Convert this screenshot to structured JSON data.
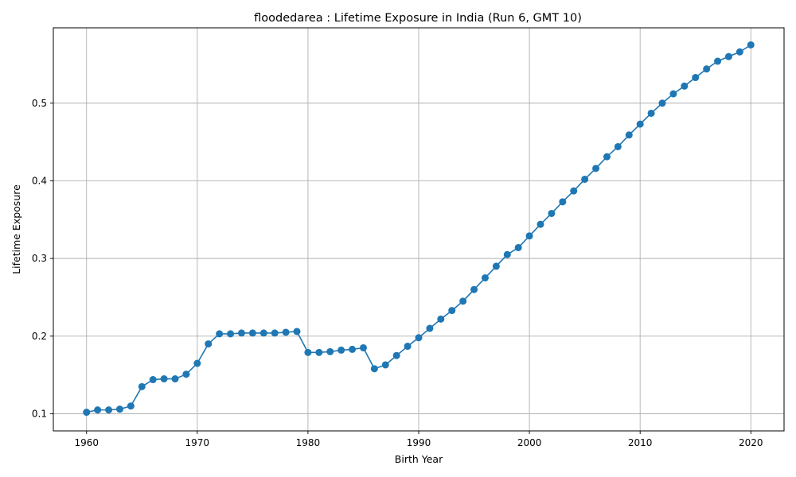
{
  "chart_data": {
    "type": "line",
    "title": "floodedarea : Lifetime Exposure in India (Run 6, GMT 10)",
    "xlabel": "Birth Year",
    "ylabel": "Lifetime Exposure",
    "xlim": [
      1957,
      2023
    ],
    "ylim": [
      0.078,
      0.597
    ],
    "xticks": [
      1960,
      1970,
      1980,
      1990,
      2000,
      2010,
      2020
    ],
    "yticks": [
      0.1,
      0.2,
      0.3,
      0.4,
      0.5
    ],
    "ytick_labels": [
      "0.1",
      "0.2",
      "0.3",
      "0.4",
      "0.5"
    ],
    "grid": true,
    "color": "#1f77b4",
    "marker": "circle",
    "x": [
      1960,
      1961,
      1962,
      1963,
      1964,
      1965,
      1966,
      1967,
      1968,
      1969,
      1970,
      1971,
      1972,
      1973,
      1974,
      1975,
      1976,
      1977,
      1978,
      1979,
      1980,
      1981,
      1982,
      1983,
      1984,
      1985,
      1986,
      1987,
      1988,
      1989,
      1990,
      1991,
      1992,
      1993,
      1994,
      1995,
      1996,
      1997,
      1998,
      1999,
      2000,
      2001,
      2002,
      2003,
      2004,
      2005,
      2006,
      2007,
      2008,
      2009,
      2010,
      2011,
      2012,
      2013,
      2014,
      2015,
      2016,
      2017,
      2018,
      2019,
      2020
    ],
    "y": [
      0.102,
      0.105,
      0.105,
      0.106,
      0.11,
      0.135,
      0.144,
      0.145,
      0.145,
      0.151,
      0.165,
      0.19,
      0.203,
      0.203,
      0.204,
      0.204,
      0.204,
      0.204,
      0.205,
      0.206,
      0.179,
      0.179,
      0.18,
      0.182,
      0.183,
      0.185,
      0.158,
      0.163,
      0.175,
      0.187,
      0.198,
      0.21,
      0.222,
      0.233,
      0.245,
      0.26,
      0.275,
      0.29,
      0.305,
      0.314,
      0.329,
      0.344,
      0.358,
      0.373,
      0.387,
      0.402,
      0.416,
      0.431,
      0.444,
      0.459,
      0.473,
      0.487,
      0.5,
      0.512,
      0.522,
      0.533,
      0.544,
      0.554,
      0.56,
      0.566,
      0.575
    ]
  }
}
